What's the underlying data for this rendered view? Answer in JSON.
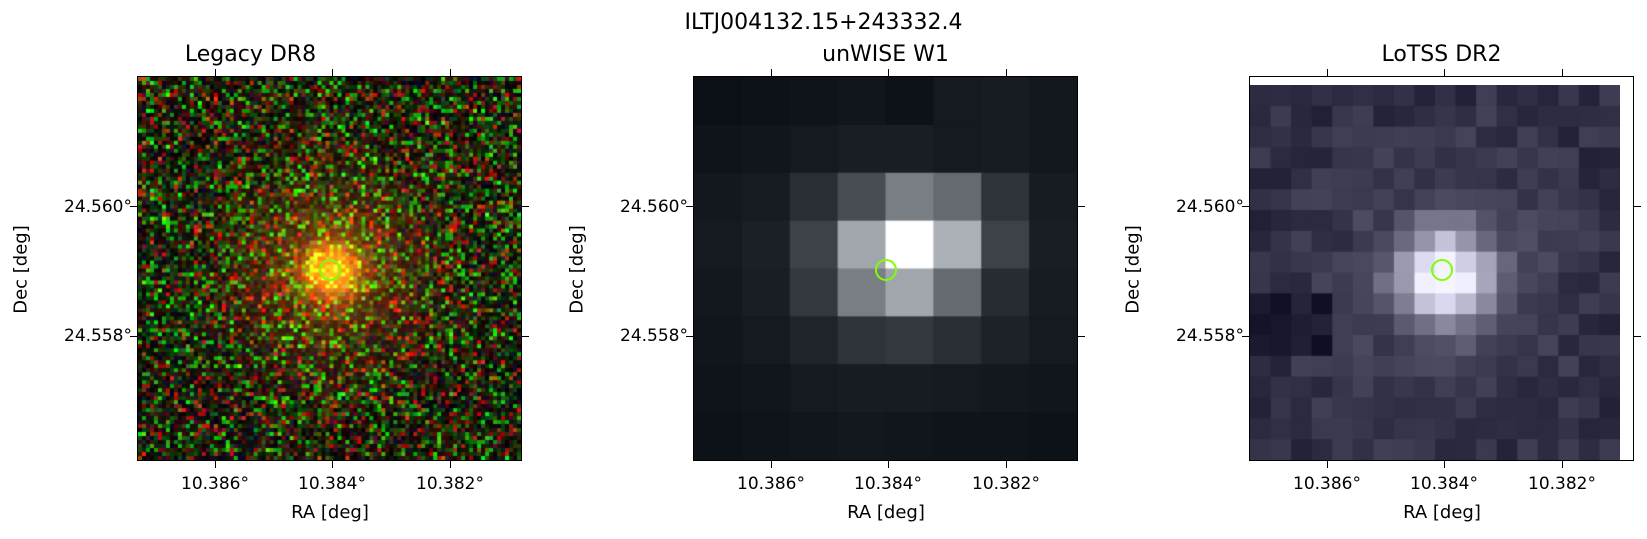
{
  "figure": {
    "title": "ILTJ004132.15+243332.4"
  },
  "panels": [
    {
      "title": "Legacy DR8",
      "xlabel": "RA [deg]",
      "ylabel": "Dec [deg]",
      "xticks": [
        "10.386°",
        "10.384°",
        "10.382°"
      ],
      "yticks": [
        "24.560°",
        "24.558°"
      ],
      "image": "optical-rgb-cutout"
    },
    {
      "title": "unWISE W1",
      "xlabel": "RA [deg]",
      "ylabel": "Dec [deg]",
      "xticks": [
        "10.386°",
        "10.384°",
        "10.382°"
      ],
      "yticks": [
        "24.560°",
        "24.558°"
      ],
      "image": "infrared-grayscale-cutout"
    },
    {
      "title": "LoTSS DR2",
      "xlabel": "RA [deg]",
      "ylabel": "Dec [deg]",
      "xticks": [
        "10.386°",
        "10.384°",
        "10.382°"
      ],
      "yticks": [
        "24.560°",
        "24.558°"
      ],
      "image": "radio-grayscale-cutout"
    }
  ],
  "colors": {
    "marker": "#7fff00"
  }
}
